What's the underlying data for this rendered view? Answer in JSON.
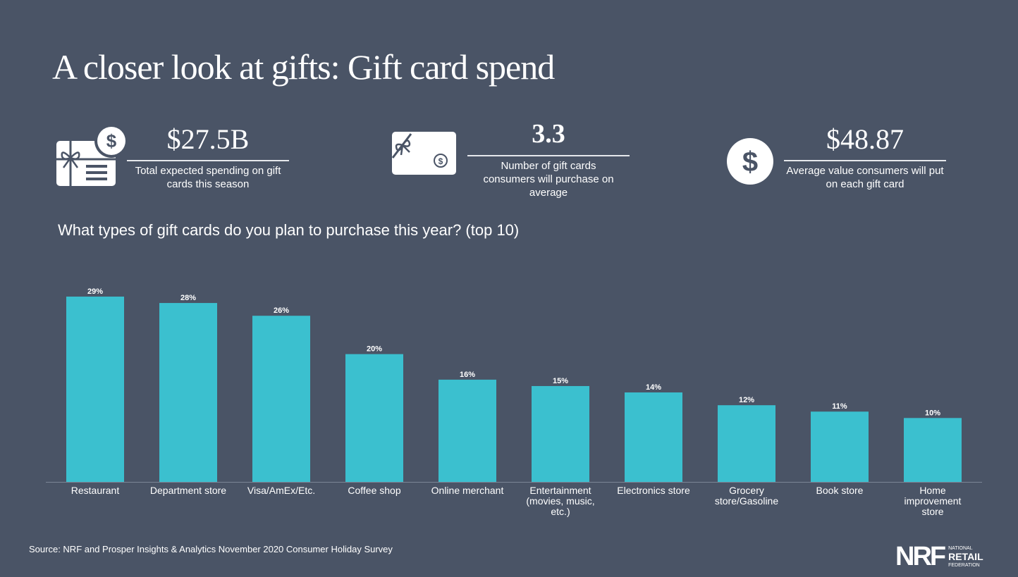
{
  "title": "A closer look at gifts: Gift card spend",
  "stats": [
    {
      "value": "$27.5B",
      "label": "Total expected spending on gift cards this season",
      "icon": "gift-card-dollar-icon"
    },
    {
      "value": "3.3",
      "label": "Number of gift cards consumers will purchase on average",
      "icon": "gift-card-bow-icon"
    },
    {
      "value": "$48.87",
      "label": "Average value consumers will put on each gift card",
      "icon": "dollar-circle-icon"
    }
  ],
  "source": "Source: NRF and Prosper Insights & Analytics November 2020 Consumer Holiday Survey",
  "logo": {
    "mark": "NRF",
    "text": "NATIONAL RETAIL FEDERATION"
  },
  "colors": {
    "background": "#4a5466",
    "bar": "#3bc0cf"
  },
  "chart_data": {
    "type": "bar",
    "title": "What types of gift cards do you plan to purchase this year? (top 10)",
    "categories": [
      "Restaurant",
      "Department store",
      "Visa/AmEx/Etc.",
      "Coffee shop",
      "Online merchant",
      "Entertainment (movies, music, etc.)",
      "Electronics store",
      "Grocery store/Gasoline",
      "Book store",
      "Home improvement store"
    ],
    "category_lines": [
      [
        "Restaurant"
      ],
      [
        "Department store"
      ],
      [
        "Visa/AmEx/Etc."
      ],
      [
        "Coffee shop"
      ],
      [
        "Online merchant"
      ],
      [
        "Entertainment",
        "(movies, music,",
        "etc.)"
      ],
      [
        "Electronics store"
      ],
      [
        "Grocery",
        "store/Gasoline"
      ],
      [
        "Book store"
      ],
      [
        "Home",
        "improvement",
        "store"
      ]
    ],
    "values": [
      29,
      28,
      26,
      20,
      16,
      15,
      14,
      12,
      11,
      10
    ],
    "data_labels": [
      "29%",
      "28%",
      "26%",
      "20%",
      "16%",
      "15%",
      "14%",
      "12%",
      "11%",
      "10%"
    ],
    "ylim": [
      0,
      29
    ],
    "grid": false,
    "xlabel": "",
    "ylabel": ""
  }
}
